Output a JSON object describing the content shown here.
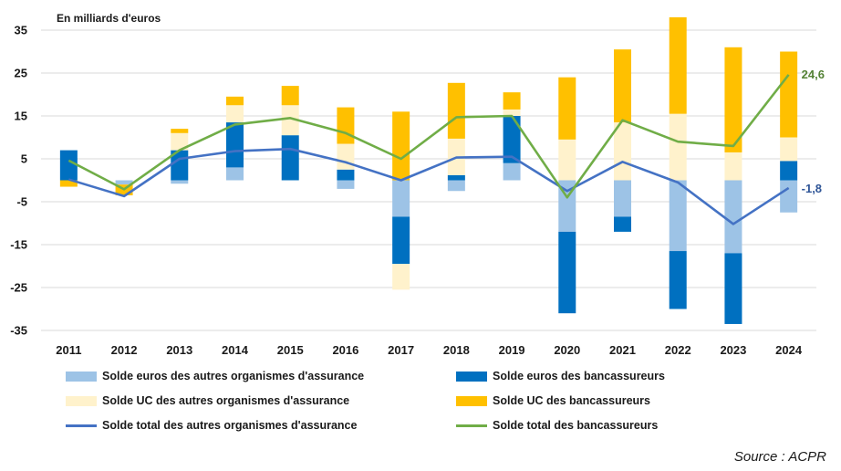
{
  "chart_data": {
    "type": "bar",
    "stacked": true,
    "unit_label": "En milliards d'euros",
    "categories": [
      "2011",
      "2012",
      "2013",
      "2014",
      "2015",
      "2016",
      "2017",
      "2018",
      "2019",
      "2020",
      "2021",
      "2022",
      "2023",
      "2024"
    ],
    "ylim": [
      -35,
      35
    ],
    "yticks": [
      35,
      25,
      15,
      5,
      -5,
      -15,
      -25,
      -35
    ],
    "grid": true,
    "legend_position": "bottom",
    "bar_series": [
      {
        "name": "Solde euros  des autres organismes d'assurance",
        "color": "#9dc3e6",
        "values": [
          0,
          -1.0,
          -0.8,
          3.0,
          0,
          -2.0,
          -8.5,
          -2.5,
          4.0,
          -12.0,
          -8.5,
          -16.5,
          -17.0,
          -7.5
        ]
      },
      {
        "name": "Solde euros  des bancassureurs",
        "color": "#0070c0",
        "values": [
          7.0,
          0,
          7.0,
          10.5,
          10.5,
          2.5,
          -11.0,
          1.2,
          11.0,
          -19.0,
          -3.5,
          -13.5,
          -16.5,
          4.5
        ]
      },
      {
        "name": "Solde UC des autres organismes d'assurance",
        "color": "#fff2cc",
        "values": [
          0,
          0,
          4.0,
          4.0,
          7.0,
          6.0,
          -6.0,
          8.5,
          1.5,
          9.5,
          13.5,
          15.5,
          6.5,
          5.5
        ]
      },
      {
        "name": "Solde UC des bancassureurs",
        "color": "#ffc000",
        "values": [
          -1.5,
          -2.5,
          1.0,
          2.0,
          4.5,
          8.5,
          16.0,
          13.0,
          4.0,
          14.5,
          17.0,
          22.5,
          24.5,
          20.0
        ]
      }
    ],
    "line_series": [
      {
        "name": "Solde total des autres organismes d'assurance",
        "color": "#4472c4",
        "values": [
          0.2,
          -3.7,
          5.0,
          6.8,
          7.3,
          4.2,
          0.0,
          5.3,
          5.5,
          -2.5,
          4.3,
          -0.5,
          -10.2,
          -1.8
        ]
      },
      {
        "name": "Solde total des bancassureurs",
        "color": "#70ad47",
        "values": [
          4.6,
          -2.1,
          7.0,
          13.0,
          14.5,
          11.0,
          5.0,
          14.7,
          15.0,
          -4.0,
          14.0,
          9.0,
          8.0,
          24.6
        ]
      }
    ],
    "end_labels": [
      {
        "text": "24,6",
        "color": "#548235"
      },
      {
        "text": "-1,8",
        "color": "#2f5597"
      }
    ]
  },
  "legend": [
    {
      "label": "Solde euros  des autres organismes d'assurance",
      "color": "#9dc3e6",
      "kind": "bar"
    },
    {
      "label": "Solde euros  des bancassureurs",
      "color": "#0070c0",
      "kind": "bar"
    },
    {
      "label": "Solde UC des autres organismes d'assurance",
      "color": "#fff2cc",
      "kind": "bar"
    },
    {
      "label": "Solde UC des bancassureurs",
      "color": "#ffc000",
      "kind": "bar"
    },
    {
      "label": "Solde total des autres organismes d'assurance",
      "color": "#4472c4",
      "kind": "line"
    },
    {
      "label": "Solde total des bancassureurs",
      "color": "#70ad47",
      "kind": "line"
    }
  ],
  "source": "Source : ACPR"
}
